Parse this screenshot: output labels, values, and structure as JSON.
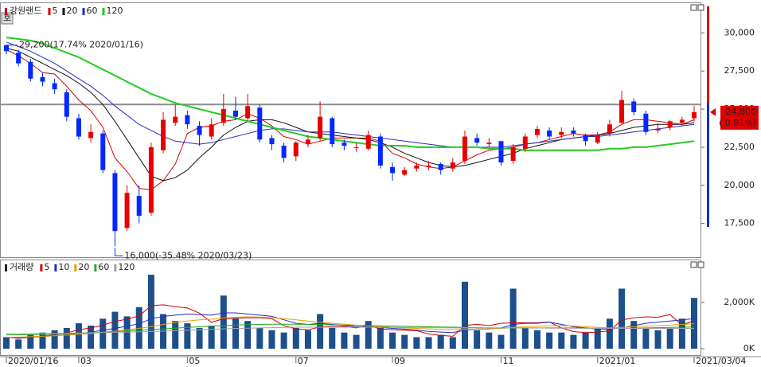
{
  "badge": "호",
  "chart_data": [
    {
      "type": "candlestick",
      "title": "강원랜드",
      "open": [
        29200,
        28700,
        28100,
        27100,
        26700,
        26100,
        24400,
        23100,
        23400,
        20800,
        17200,
        19300,
        18200,
        22300,
        24100,
        24600,
        23900,
        23200,
        24100,
        24900,
        24400,
        25100,
        23100,
        22600,
        21900,
        22700,
        23100,
        24400,
        22800,
        22500,
        22400,
        23200,
        21200,
        20700,
        21100,
        21200,
        21400,
        21100,
        21600,
        23100,
        22700,
        22900,
        21600,
        22400,
        23300,
        23600,
        23300,
        23600,
        23300,
        22800,
        23400,
        24100,
        25500,
        24700,
        23600,
        23800,
        24100,
        24400
      ],
      "high": [
        29200,
        28900,
        28300,
        27400,
        27000,
        26300,
        24700,
        24000,
        23600,
        21000,
        20000,
        20000,
        22800,
        24800,
        25300,
        24900,
        24200,
        24400,
        26000,
        25800,
        26000,
        25300,
        23300,
        22800,
        22900,
        23300,
        25500,
        24500,
        23000,
        22800,
        23600,
        23400,
        21500,
        21200,
        21500,
        21600,
        21500,
        21800,
        23600,
        23400,
        23100,
        22900,
        22700,
        23400,
        23900,
        23800,
        23800,
        23800,
        23400,
        23500,
        24300,
        26200,
        25700,
        24900,
        24100,
        24300,
        24500,
        25200
      ],
      "low": [
        28600,
        27800,
        26800,
        26500,
        26000,
        24200,
        23000,
        22800,
        20800,
        16000,
        17000,
        17500,
        18000,
        22100,
        23900,
        23700,
        22600,
        23000,
        23900,
        24300,
        24200,
        22800,
        22300,
        21500,
        21600,
        22500,
        22900,
        22500,
        22300,
        22200,
        22300,
        21100,
        20300,
        20600,
        20900,
        21000,
        20700,
        20900,
        21400,
        22600,
        22500,
        21300,
        21400,
        22200,
        23100,
        23000,
        23100,
        23200,
        22600,
        22700,
        23200,
        24000,
        24600,
        23300,
        23400,
        23600,
        23900,
        24200
      ],
      "close": [
        28800,
        28000,
        27000,
        26800,
        26300,
        24500,
        23200,
        23500,
        21000,
        17000,
        19500,
        18000,
        22500,
        24300,
        24500,
        24000,
        23300,
        24000,
        25000,
        24500,
        25200,
        23000,
        22700,
        21800,
        22800,
        23000,
        24500,
        22700,
        22600,
        22500,
        23300,
        21300,
        20800,
        21000,
        21300,
        21300,
        21000,
        21500,
        23200,
        22800,
        22800,
        21500,
        22500,
        23200,
        23700,
        23200,
        23500,
        23400,
        22900,
        23300,
        24000,
        25600,
        24800,
        23500,
        23700,
        24200,
        24300,
        24800
      ],
      "up_color": "#e80000",
      "down_color": "#0028ff",
      "series": [
        {
          "name": "5",
          "color": "#d40000",
          "values": [
            28900,
            28500,
            28000,
            27400,
            27300,
            26500,
            25600,
            24900,
            23800,
            21800,
            20900,
            19800,
            19700,
            20300,
            21400,
            23400,
            23800,
            23900,
            24200,
            24300,
            24700,
            24400,
            23900,
            23200,
            23000,
            22700,
            22900,
            23100,
            23100,
            23100,
            23100,
            22900,
            22100,
            21800,
            21400,
            21200,
            21100,
            21200,
            21600,
            22000,
            22300,
            22400,
            22500,
            22700,
            22800,
            23000,
            23200,
            23400,
            23300,
            23300,
            23500,
            24000,
            24300,
            24300,
            24200,
            24100,
            24000,
            24300
          ]
        },
        {
          "name": "20",
          "color": "#111111",
          "values": [
            29000,
            28800,
            28400,
            28000,
            27600,
            27200,
            26700,
            26100,
            25300,
            24200,
            23000,
            21800,
            20600,
            20300,
            20500,
            21000,
            21800,
            22500,
            23300,
            23800,
            24200,
            24300,
            24300,
            24100,
            23800,
            23500,
            23400,
            23300,
            23200,
            23100,
            23000,
            22800,
            22500,
            22100,
            21800,
            21500,
            21300,
            21200,
            21300,
            21500,
            21700,
            21900,
            22100,
            22400,
            22600,
            22800,
            23000,
            23100,
            23200,
            23300,
            23400,
            23600,
            23800,
            23900,
            24000,
            24000,
            24000,
            24100
          ]
        },
        {
          "name": "60",
          "color": "#2a2ac8",
          "values": [
            29400,
            29100,
            28800,
            28400,
            28000,
            27500,
            27000,
            26500,
            25900,
            25200,
            24600,
            24000,
            23600,
            23200,
            22900,
            22800,
            22700,
            22800,
            23000,
            23200,
            23400,
            23600,
            23700,
            23700,
            23600,
            23500,
            23500,
            23500,
            23400,
            23300,
            23200,
            23100,
            23000,
            22900,
            22800,
            22700,
            22600,
            22500,
            22500,
            22500,
            22500,
            22500,
            22600,
            22700,
            22800,
            22900,
            23000,
            23100,
            23200,
            23200,
            23300,
            23400,
            23500,
            23600,
            23700,
            23800,
            23900,
            24000
          ]
        },
        {
          "name": "120",
          "color": "#22cc22",
          "values": [
            29700,
            29600,
            29500,
            29300,
            29000,
            28700,
            28400,
            28000,
            27600,
            27200,
            26800,
            26400,
            26000,
            25700,
            25400,
            25200,
            25000,
            24800,
            24600,
            24400,
            24200,
            24000,
            23800,
            23600,
            23400,
            23200,
            23100,
            23000,
            22900,
            22800,
            22700,
            22600,
            22600,
            22600,
            22500,
            22500,
            22500,
            22500,
            22500,
            22500,
            22400,
            22400,
            22400,
            22300,
            22300,
            22300,
            22300,
            22300,
            22300,
            22300,
            22400,
            22400,
            22500,
            22500,
            22600,
            22700,
            22800,
            22900
          ]
        }
      ],
      "ylim": [
        15340,
        31740
      ],
      "yticks": [
        {
          "value": 17500,
          "label": "17,500"
        },
        {
          "value": 20000,
          "label": "20,000"
        },
        {
          "value": 22500,
          "label": "22,500"
        },
        {
          "value": 25000,
          "label": "25,000"
        },
        {
          "value": 27500,
          "label": "27,500"
        },
        {
          "value": 30000,
          "label": "30,000"
        }
      ],
      "ref_line": 25300,
      "current": {
        "value": 24800,
        "label": "24,800"
      },
      "current_change": "( 0.81%)",
      "annotations": [
        "29,200(17.74% 2020/01/16)",
        "16,000(-35.48% 2020/03/23)"
      ]
    },
    {
      "type": "bar",
      "title": "거래량",
      "color": "#1c4f8c",
      "categories": [
        "2020/01/16",
        null,
        null,
        null,
        null,
        null,
        "03",
        null,
        null,
        null,
        null,
        null,
        null,
        null,
        null,
        "05",
        null,
        null,
        null,
        null,
        null,
        null,
        null,
        null,
        "07",
        null,
        null,
        null,
        null,
        null,
        null,
        null,
        "09",
        null,
        null,
        null,
        null,
        null,
        null,
        null,
        null,
        "11",
        null,
        null,
        null,
        null,
        null,
        null,
        null,
        "2021/01",
        null,
        null,
        null,
        null,
        null,
        null,
        null,
        "2021/03/04"
      ],
      "values": [
        500,
        400,
        600,
        700,
        800,
        900,
        1100,
        1000,
        1300,
        1600,
        1400,
        1800,
        3200,
        1500,
        1200,
        1100,
        900,
        1000,
        2300,
        1300,
        1200,
        900,
        800,
        700,
        900,
        800,
        1500,
        900,
        700,
        600,
        1200,
        900,
        700,
        600,
        500,
        500,
        600,
        500,
        2900,
        800,
        700,
        600,
        2600,
        900,
        800,
        700,
        700,
        600,
        700,
        900,
        1300,
        2600,
        1200,
        900,
        800,
        900,
        1300,
        2200
      ],
      "series": [
        {
          "name": "5",
          "color": "#d40000",
          "values": [
            500,
            450,
            500,
            550,
            600,
            680,
            820,
            900,
            1020,
            1180,
            1280,
            1420,
            1860,
            1900,
            1820,
            1760,
            1540,
            1140,
            1300,
            1320,
            1340,
            1340,
            1300,
            1000,
            860,
            820,
            940,
            960,
            960,
            900,
            1000,
            860,
            820,
            800,
            780,
            640,
            580,
            540,
            1000,
            1060,
            1000,
            1100,
            1120,
            1120,
            1120,
            1160,
            900,
            740,
            700,
            720,
            780,
            1240,
            1340,
            1380,
            1360,
            1480,
            1020,
            1220
          ]
        },
        {
          "name": "10",
          "color": "#2a2ac8",
          "values": [
            500,
            480,
            500,
            530,
            560,
            600,
            650,
            720,
            800,
            880,
            980,
            1080,
            1300,
            1400,
            1450,
            1500,
            1480,
            1450,
            1550,
            1550,
            1500,
            1450,
            1400,
            1250,
            1100,
            1050,
            1100,
            1050,
            1000,
            950,
            950,
            920,
            880,
            850,
            800,
            750,
            720,
            700,
            800,
            850,
            850,
            900,
            1050,
            1100,
            1100,
            1150,
            1050,
            950,
            900,
            850,
            850,
            900,
            1000,
            1100,
            1150,
            1200,
            1250,
            1300
          ]
        },
        {
          "name": "20",
          "color": "#e8a000",
          "values": [
            500,
            500,
            520,
            540,
            560,
            590,
            620,
            660,
            710,
            760,
            820,
            880,
            960,
            1050,
            1130,
            1200,
            1250,
            1280,
            1330,
            1360,
            1380,
            1370,
            1340,
            1300,
            1250,
            1200,
            1150,
            1100,
            1060,
            1020,
            990,
            960,
            930,
            900,
            880,
            860,
            840,
            820,
            830,
            850,
            860,
            880,
            920,
            950,
            970,
            990,
            1000,
            980,
            950,
            920,
            900,
            920,
            950,
            980,
            1000,
            1020,
            1050,
            1080
          ]
        },
        {
          "name": "60",
          "color": "#22aa22",
          "values": [
            600,
            600,
            610,
            620,
            630,
            650,
            670,
            690,
            710,
            740,
            770,
            800,
            830,
            860,
            890,
            920,
            950,
            980,
            1000,
            1020,
            1040,
            1050,
            1060,
            1060,
            1060,
            1050,
            1040,
            1030,
            1020,
            1010,
            1000,
            990,
            980,
            970,
            960,
            950,
            940,
            930,
            920,
            910,
            900,
            900,
            900,
            900,
            900,
            900,
            900,
            900,
            890,
            880,
            880,
            880,
            890,
            900,
            910,
            920,
            930,
            940
          ]
        },
        {
          "name": "120",
          "color": "#a0a0a0",
          "values": [
            650,
            650,
            650,
            660,
            660,
            670,
            680,
            690,
            700,
            710,
            720,
            730,
            740,
            760,
            780,
            800,
            820,
            840,
            860,
            880,
            890,
            900,
            910,
            920,
            930,
            930,
            930,
            930,
            930,
            930,
            930,
            930,
            920,
            920,
            920,
            910,
            910,
            900,
            900,
            900,
            900,
            900,
            900,
            900,
            900,
            890,
            890,
            890,
            880,
            880,
            880,
            880,
            880,
            880,
            880,
            880,
            880,
            880
          ]
        }
      ],
      "ylim": [
        -240,
        3790
      ],
      "yticks": [
        {
          "value": 0,
          "label": "0K"
        },
        {
          "value": 2000,
          "label": "2,000K"
        }
      ]
    }
  ]
}
